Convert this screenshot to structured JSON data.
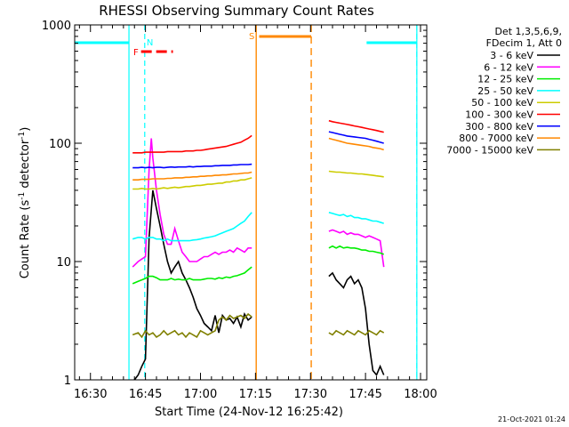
{
  "chart_data": {
    "type": "line",
    "title": "RHESSI Observing Summary Count Rates",
    "xlabel": "Start Time (24-Nov-12 16:25:42)",
    "ylabel_main": "Count Rate (s",
    "ylabel_sup1": "-1",
    "ylabel_mid": " detector",
    "ylabel_sup2": "-1",
    "ylabel_end": ")",
    "y_scale": "log",
    "ylim": [
      1,
      1000
    ],
    "xlim_minutes": [
      -4.3,
      91.7
    ],
    "x_ticks": [
      {
        "label": "16:30",
        "min": 0
      },
      {
        "label": "16:45",
        "min": 15
      },
      {
        "label": "17:00",
        "min": 30
      },
      {
        "label": "17:15",
        "min": 45
      },
      {
        "label": "17:30",
        "min": 60
      },
      {
        "label": "17:45",
        "min": 75
      },
      {
        "label": "18:00",
        "min": 90
      }
    ],
    "y_ticks": [
      {
        "label": "1",
        "value": 1
      },
      {
        "label": "10",
        "value": 10
      },
      {
        "label": "100",
        "value": 100
      },
      {
        "label": "1000",
        "value": 1000
      }
    ],
    "legend_header": [
      "Det 1,3,5,6,9,",
      "FDecim 1, Att 0"
    ],
    "legend_placement": "right",
    "series": [
      {
        "name": "3 - 6 keV",
        "color": "#000000",
        "x": [
          12,
          13,
          14,
          15,
          16,
          17,
          18,
          19,
          20,
          21,
          22,
          23,
          24,
          25,
          26,
          27,
          28,
          29,
          30,
          31,
          32,
          33,
          34,
          35,
          36,
          37,
          38,
          39,
          40,
          41,
          42,
          43,
          44,
          65,
          66,
          67,
          68,
          69,
          70,
          71,
          72,
          73,
          74,
          75,
          76,
          77,
          78,
          79,
          80
        ],
        "y": [
          1,
          1.1,
          1.3,
          1.5,
          16,
          40,
          28,
          20,
          14,
          10,
          8,
          9,
          10,
          8,
          7,
          6,
          5,
          4,
          3.5,
          3,
          2.8,
          2.6,
          3.5,
          2.5,
          3.5,
          3.2,
          3.3,
          3.0,
          3.4,
          2.8,
          3.6,
          3.2,
          3.4,
          7.5,
          8,
          7,
          6.5,
          6,
          7,
          7.5,
          6.5,
          7,
          6,
          4,
          2,
          1.2,
          1.1,
          1.3,
          1.1
        ]
      },
      {
        "name": "6 - 12 keV",
        "color": "#ff00ff",
        "x": [
          11.5,
          13,
          14,
          15,
          16,
          16.6,
          17,
          18,
          19,
          20,
          21,
          22,
          23,
          24,
          25,
          26,
          27,
          28,
          29,
          30,
          31,
          32,
          33,
          34,
          35,
          36,
          37,
          38,
          39,
          40,
          41,
          42,
          43,
          44,
          65,
          66,
          67,
          68,
          69,
          70,
          71,
          72,
          73,
          74,
          75,
          76,
          77,
          78,
          79,
          80
        ],
        "y": [
          9,
          10,
          10.5,
          11,
          60,
          110,
          75,
          40,
          25,
          17,
          14,
          14,
          19,
          15,
          12,
          11,
          10,
          10,
          10,
          10.5,
          11,
          11,
          11.5,
          12,
          11.5,
          12,
          12,
          12.5,
          12,
          13,
          12.5,
          12,
          13,
          13,
          18,
          18.5,
          18,
          17.5,
          18,
          17,
          17.5,
          17,
          17,
          16.5,
          16,
          16.5,
          16,
          15.5,
          15,
          9
        ]
      },
      {
        "name": "12 - 25 keV",
        "color": "#00ee00",
        "x": [
          11.5,
          13,
          14,
          15,
          16,
          17,
          18,
          19,
          20,
          21,
          22,
          23,
          24,
          25,
          26,
          27,
          28,
          29,
          30,
          31,
          32,
          33,
          34,
          35,
          36,
          37,
          38,
          39,
          40,
          41,
          42,
          43,
          44,
          65,
          66,
          67,
          68,
          69,
          70,
          71,
          72,
          73,
          74,
          75,
          76,
          77,
          78,
          79,
          80
        ],
        "y": [
          6.5,
          6.8,
          7,
          7.2,
          7.5,
          7.5,
          7.3,
          7,
          7,
          7,
          7.2,
          7,
          7.1,
          7,
          7,
          7.2,
          7,
          7,
          7,
          7.1,
          7.2,
          7.2,
          7.1,
          7.3,
          7.2,
          7.4,
          7.3,
          7.5,
          7.6,
          7.8,
          8,
          8.5,
          9,
          13,
          13.5,
          13,
          13.5,
          13,
          13.2,
          13,
          13,
          12.8,
          12.5,
          12.5,
          12.2,
          12.2,
          12,
          11.8,
          11.5
        ]
      },
      {
        "name": "25 - 50 keV",
        "color": "#00ffff",
        "x": [
          11.5,
          13,
          14,
          15,
          16,
          17,
          18,
          19,
          20,
          21,
          22,
          23,
          24,
          25,
          26,
          27,
          28,
          29,
          30,
          31,
          32,
          33,
          34,
          35,
          36,
          37,
          38,
          39,
          40,
          41,
          42,
          43,
          44,
          65,
          66,
          67,
          68,
          69,
          70,
          71,
          72,
          73,
          74,
          75,
          76,
          77,
          78,
          79,
          80
        ],
        "y": [
          15.5,
          16,
          16,
          15.5,
          16,
          16,
          15.5,
          15.5,
          15,
          15.5,
          15,
          15,
          15,
          15,
          15,
          15,
          15.2,
          15.3,
          15.5,
          15.8,
          16,
          16.2,
          16.5,
          17,
          17.5,
          18,
          18.5,
          19,
          20,
          21,
          22,
          24,
          26,
          26,
          25.5,
          25,
          24.5,
          25,
          24,
          24.5,
          23.5,
          23.5,
          23,
          23,
          22.5,
          22,
          22,
          21.5,
          21
        ]
      },
      {
        "name": "50 - 100 keV",
        "color": "#cccc00",
        "x": [
          11.5,
          13,
          14,
          15,
          16,
          17,
          18,
          19,
          20,
          21,
          22,
          23,
          24,
          25,
          26,
          27,
          28,
          29,
          30,
          31,
          32,
          33,
          34,
          35,
          36,
          37,
          38,
          39,
          40,
          41,
          42,
          43,
          44,
          65,
          66,
          67,
          68,
          69,
          70,
          71,
          72,
          73,
          74,
          75,
          76,
          77,
          78,
          79,
          80
        ],
        "y": [
          41,
          41,
          41.5,
          41,
          41,
          41.5,
          41,
          41.5,
          42,
          41.5,
          42,
          42.5,
          42,
          42.5,
          43,
          43,
          43.5,
          44,
          44,
          44.5,
          45,
          45,
          45.5,
          46,
          46,
          47,
          47,
          48,
          48,
          49,
          49,
          50,
          51,
          58,
          57.5,
          57,
          57,
          56.5,
          56,
          56,
          55.5,
          55,
          55,
          54.5,
          54,
          53.5,
          53,
          52.5,
          52
        ]
      },
      {
        "name": "100 - 300 keV",
        "color": "#ff0000",
        "x": [
          11.5,
          13,
          14,
          15,
          16,
          17,
          18,
          19,
          20,
          21,
          22,
          23,
          24,
          25,
          26,
          27,
          28,
          29,
          30,
          31,
          32,
          33,
          34,
          35,
          36,
          37,
          38,
          39,
          40,
          41,
          42,
          43,
          44,
          65,
          66,
          67,
          68,
          69,
          70,
          71,
          72,
          73,
          74,
          75,
          76,
          77,
          78,
          79,
          80
        ],
        "y": [
          83,
          83,
          83,
          84,
          84,
          84,
          84,
          84,
          84,
          85,
          85,
          85,
          85,
          85,
          86,
          86,
          86,
          87,
          87,
          88,
          89,
          90,
          91,
          92,
          93,
          94,
          96,
          98,
          100,
          102,
          106,
          110,
          116,
          155,
          152,
          150,
          148,
          146,
          144,
          142,
          140,
          138,
          136,
          134,
          132,
          130,
          128,
          126,
          124
        ]
      },
      {
        "name": "300 - 800 keV",
        "color": "#0000ff",
        "x": [
          11.5,
          13,
          14,
          15,
          16,
          17,
          18,
          19,
          20,
          21,
          22,
          23,
          24,
          25,
          26,
          27,
          28,
          29,
          30,
          31,
          32,
          33,
          34,
          35,
          36,
          37,
          38,
          39,
          40,
          41,
          42,
          43,
          44,
          65,
          66,
          67,
          68,
          69,
          70,
          71,
          72,
          73,
          74,
          75,
          76,
          77,
          78,
          79,
          80
        ],
        "y": [
          62,
          62,
          62.5,
          62,
          62.5,
          62,
          62.5,
          62.5,
          62,
          62.5,
          63,
          62.5,
          63,
          63,
          63,
          63.5,
          63,
          63.5,
          63.5,
          64,
          64,
          64,
          64.5,
          64.5,
          65,
          65,
          65,
          65.5,
          65.5,
          66,
          66,
          66,
          66.5,
          125,
          123,
          121,
          119,
          117,
          115,
          114,
          113,
          112,
          111,
          110,
          108,
          106,
          104,
          102,
          100
        ]
      },
      {
        "name": "800 - 7000 keV",
        "color": "#ff8800",
        "x": [
          11.5,
          13,
          14,
          15,
          16,
          17,
          18,
          19,
          20,
          21,
          22,
          23,
          24,
          25,
          26,
          27,
          28,
          29,
          30,
          31,
          32,
          33,
          34,
          35,
          36,
          37,
          38,
          39,
          40,
          41,
          42,
          43,
          44,
          65,
          66,
          67,
          68,
          69,
          70,
          71,
          72,
          73,
          74,
          75,
          76,
          77,
          78,
          79,
          80
        ],
        "y": [
          49,
          49,
          49.5,
          49.5,
          49.5,
          50,
          50,
          50,
          50,
          50.5,
          50.5,
          51,
          51,
          51,
          51.5,
          51.5,
          52,
          52,
          52.5,
          52.5,
          53,
          53,
          53.5,
          53.5,
          54,
          54,
          54.5,
          55,
          55,
          55.5,
          56,
          56,
          57,
          110,
          108,
          106,
          104,
          102,
          100,
          99,
          98,
          97,
          96,
          95,
          94,
          92,
          91,
          90,
          88
        ]
      },
      {
        "name": "7000 - 15000 keV",
        "color": "#808000",
        "x": [
          11.5,
          13,
          14,
          15,
          16,
          17,
          18,
          19,
          20,
          21,
          22,
          23,
          24,
          25,
          26,
          27,
          28,
          29,
          30,
          31,
          32,
          33,
          34,
          35,
          36,
          37,
          38,
          39,
          40,
          41,
          42,
          43,
          44,
          65,
          66,
          67,
          68,
          69,
          70,
          71,
          72,
          73,
          74,
          75,
          76,
          77,
          78,
          79,
          80
        ],
        "y": [
          2.4,
          2.5,
          2.3,
          2.6,
          2.4,
          2.5,
          2.3,
          2.4,
          2.6,
          2.4,
          2.5,
          2.6,
          2.4,
          2.5,
          2.3,
          2.5,
          2.4,
          2.3,
          2.6,
          2.5,
          2.4,
          2.5,
          2.6,
          3.2,
          3.4,
          3.2,
          3.5,
          3.3,
          3.4,
          3.5,
          3.3,
          3.6,
          3.4,
          2.5,
          2.4,
          2.6,
          2.5,
          2.4,
          2.6,
          2.5,
          2.4,
          2.6,
          2.5,
          2.4,
          2.6,
          2.5,
          2.4,
          2.6,
          2.5
        ]
      }
    ],
    "annotations": {
      "night_label": "N",
      "flare_label": "F",
      "saa_label": "S",
      "night_color": "#00ffff",
      "flare_color": "#ff0000",
      "saa_color": "#ff8800",
      "night_bars_min": [
        [
          -4.3,
          10.5
        ],
        [
          75.3,
          89.0
        ]
      ],
      "night_lines_min": [
        10.5,
        14.8,
        75.3,
        89.0
      ],
      "flare_bar_min": [
        13.8,
        22.5
      ],
      "saa_bar_min": [
        46.0,
        60.2
      ],
      "saa_lines_min": [
        45.2,
        60.2
      ]
    },
    "timestamp": "21-Oct-2021 01:24"
  }
}
